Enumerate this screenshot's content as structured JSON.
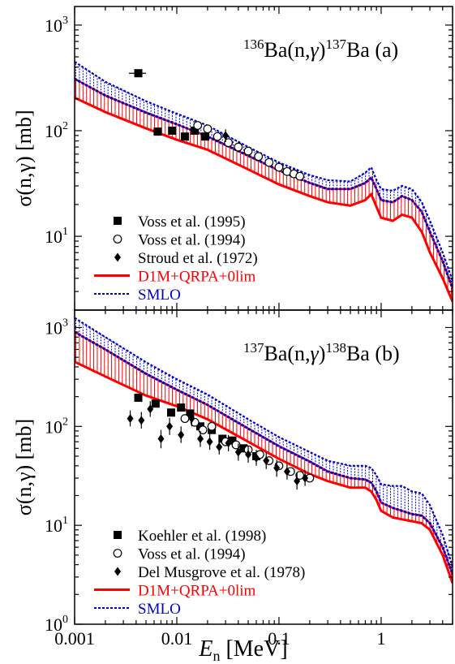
{
  "chart_data": [
    {
      "type": "line",
      "panel_label": "(a)",
      "reaction": {
        "target_mass": "136",
        "target": "Ba(n,",
        "gamma": "γ",
        "close": ")",
        "product_mass": "137",
        "product": "Ba"
      },
      "ylabel": "σ(n,γ) [mb]",
      "xlabel": "",
      "xscale": "log",
      "yscale": "log",
      "xlim": [
        0.001,
        5
      ],
      "ylim": [
        2,
        1500
      ],
      "y_ticks": [
        {
          "value": 10,
          "label": "10",
          "exp": "1"
        },
        {
          "value": 100,
          "label": "10",
          "exp": "2"
        },
        {
          "value": 1000,
          "label": "10",
          "exp": "3"
        }
      ],
      "x_ticks": [],
      "legend_position": "bottom-left",
      "series": [
        {
          "name": "D1M+QRPA+0lim",
          "kind": "band",
          "color": "#ff0000",
          "x": [
            0.001,
            0.002,
            0.005,
            0.01,
            0.02,
            0.05,
            0.1,
            0.2,
            0.3,
            0.5,
            0.7,
            0.8,
            0.9,
            1.0,
            1.3,
            1.6,
            2.0,
            2.5,
            3.0,
            4.0,
            5.0
          ],
          "lower": [
            205,
            150,
            105,
            82,
            66,
            43,
            31,
            24,
            21,
            19.5,
            22,
            25,
            19,
            15,
            14,
            16,
            15,
            11,
            7,
            4,
            2.4
          ],
          "upper": [
            310,
            215,
            148,
            115,
            88,
            58,
            42,
            32,
            28,
            28,
            32,
            36,
            28,
            22,
            21,
            24,
            22,
            17,
            11,
            5.8,
            3.2
          ]
        },
        {
          "name": "SMLO",
          "kind": "band",
          "color": "#0000cc",
          "x": [
            0.001,
            0.002,
            0.005,
            0.01,
            0.02,
            0.05,
            0.1,
            0.2,
            0.3,
            0.5,
            0.7,
            0.8,
            0.9,
            1.0,
            1.3,
            1.6,
            2.0,
            2.5,
            3.0,
            4.0,
            5.0
          ],
          "lower": [
            310,
            215,
            148,
            115,
            88,
            58,
            42,
            32,
            28,
            28,
            32,
            36,
            28,
            22,
            21,
            24,
            22,
            17,
            11,
            5.8,
            3.2
          ],
          "upper": [
            450,
            290,
            190,
            145,
            112,
            70,
            50,
            38,
            34,
            33,
            40,
            45,
            34,
            28,
            27,
            30,
            28,
            21,
            14,
            7,
            3.8
          ]
        }
      ],
      "experiments": [
        {
          "name": "Voss et al. (1995)",
          "marker": "filled-square",
          "points": [
            {
              "x": 0.0042,
              "y": 350,
              "xerr": [
                0.0034,
                0.005
              ]
            },
            {
              "x": 0.0065,
              "y": 98
            },
            {
              "x": 0.009,
              "y": 100
            },
            {
              "x": 0.012,
              "y": 88
            },
            {
              "x": 0.015,
              "y": 100
            },
            {
              "x": 0.019,
              "y": 88
            }
          ]
        },
        {
          "name": "Voss et al. (1994)",
          "marker": "open-circle",
          "points": [
            {
              "x": 0.016,
              "y": 112
            },
            {
              "x": 0.02,
              "y": 104
            },
            {
              "x": 0.025,
              "y": 88
            },
            {
              "x": 0.032,
              "y": 77
            },
            {
              "x": 0.04,
              "y": 70
            },
            {
              "x": 0.05,
              "y": 64
            },
            {
              "x": 0.063,
              "y": 57
            },
            {
              "x": 0.08,
              "y": 50
            },
            {
              "x": 0.1,
              "y": 45
            },
            {
              "x": 0.12,
              "y": 41
            },
            {
              "x": 0.14,
              "y": 39
            },
            {
              "x": 0.16,
              "y": 37
            }
          ]
        },
        {
          "name": "Stroud et al. (1972)",
          "marker": "filled-diamond",
          "points": [
            {
              "x": 0.03,
              "y": 90,
              "yerr": [
                78,
                103
              ]
            }
          ]
        }
      ]
    },
    {
      "type": "line",
      "panel_label": "(b)",
      "reaction": {
        "target_mass": "137",
        "target": "Ba(n,",
        "gamma": "γ",
        "close": ")",
        "product_mass": "138",
        "product": "Ba"
      },
      "ylabel": "σ(n,γ) [mb]",
      "xlabel": "E_n [MeV]",
      "xlabel_main": "E",
      "xlabel_sub": "n",
      "xlabel_unit": " [MeV]",
      "xscale": "log",
      "yscale": "log",
      "xlim": [
        0.001,
        5
      ],
      "ylim": [
        1,
        1500
      ],
      "y_ticks": [
        {
          "value": 1,
          "label": "10",
          "exp": "0"
        },
        {
          "value": 10,
          "label": "10",
          "exp": "1"
        },
        {
          "value": 100,
          "label": "10",
          "exp": "2"
        },
        {
          "value": 1000,
          "label": "10",
          "exp": "3"
        }
      ],
      "x_ticks": [
        {
          "value": 0.001,
          "label": "0.001"
        },
        {
          "value": 0.01,
          "label": "0.01"
        },
        {
          "value": 0.1,
          "label": "0.1"
        },
        {
          "value": 1,
          "label": "1"
        }
      ],
      "legend_position": "bottom-left",
      "series": [
        {
          "name": "D1M+QRPA+0lim",
          "kind": "band",
          "color": "#ff0000",
          "x": [
            0.001,
            0.002,
            0.005,
            0.01,
            0.02,
            0.05,
            0.1,
            0.2,
            0.3,
            0.5,
            0.7,
            0.8,
            0.9,
            1.0,
            1.3,
            1.6,
            2.0,
            2.5,
            3.0,
            4.0,
            5.0
          ],
          "lower": [
            450,
            320,
            205,
            160,
            118,
            70,
            47,
            33,
            28,
            24,
            24,
            22,
            18,
            14,
            12,
            11.5,
            11,
            10.5,
            9,
            5,
            2.6
          ],
          "upper": [
            900,
            600,
            340,
            235,
            165,
            95,
            63,
            44,
            35,
            30,
            29,
            27,
            22,
            17,
            15,
            14,
            13,
            12.5,
            10.5,
            6,
            3.2
          ]
        },
        {
          "name": "SMLO",
          "kind": "band",
          "color": "#0000cc",
          "x": [
            0.001,
            0.002,
            0.005,
            0.01,
            0.02,
            0.05,
            0.1,
            0.2,
            0.3,
            0.5,
            0.7,
            0.8,
            0.9,
            1.0,
            1.3,
            1.6,
            2.0,
            2.5,
            3.0,
            4.0,
            5.0
          ],
          "lower": [
            900,
            600,
            340,
            235,
            165,
            95,
            63,
            44,
            35,
            30,
            29,
            27,
            22,
            17,
            15,
            14,
            13,
            12.5,
            10.5,
            6,
            3.2
          ],
          "upper": [
            1250,
            800,
            445,
            300,
            210,
            118,
            78,
            55,
            45,
            40,
            40,
            38,
            32,
            26,
            25,
            25,
            22,
            21,
            16,
            8,
            3.8
          ]
        }
      ],
      "experiments": [
        {
          "name": "Koehler et al. (1998)",
          "marker": "filled-square",
          "points": [
            {
              "x": 0.0042,
              "y": 195
            },
            {
              "x": 0.0062,
              "y": 170
            },
            {
              "x": 0.0088,
              "y": 138
            },
            {
              "x": 0.011,
              "y": 155
            },
            {
              "x": 0.0135,
              "y": 135
            },
            {
              "x": 0.017,
              "y": 100
            },
            {
              "x": 0.022,
              "y": 92
            },
            {
              "x": 0.028,
              "y": 75
            },
            {
              "x": 0.035,
              "y": 72
            },
            {
              "x": 0.045,
              "y": 60
            },
            {
              "x": 0.06,
              "y": 50
            }
          ]
        },
        {
          "name": "Voss et al. (1994)",
          "marker": "open-circle",
          "points": [
            {
              "x": 0.012,
              "y": 120
            },
            {
              "x": 0.015,
              "y": 110
            },
            {
              "x": 0.018,
              "y": 92
            },
            {
              "x": 0.022,
              "y": 100
            },
            {
              "x": 0.03,
              "y": 70
            },
            {
              "x": 0.038,
              "y": 65
            },
            {
              "x": 0.05,
              "y": 58
            },
            {
              "x": 0.065,
              "y": 52
            },
            {
              "x": 0.08,
              "y": 45
            },
            {
              "x": 0.1,
              "y": 40
            },
            {
              "x": 0.13,
              "y": 35
            },
            {
              "x": 0.16,
              "y": 32
            },
            {
              "x": 0.2,
              "y": 30
            }
          ]
        },
        {
          "name": "Del Musgrove et al. (1978)",
          "marker": "filled-diamond",
          "points": [
            {
              "x": 0.0035,
              "y": 120,
              "yerr": [
                100,
                145
              ]
            },
            {
              "x": 0.0045,
              "y": 115,
              "yerr": [
                95,
                140
              ]
            },
            {
              "x": 0.0055,
              "y": 150,
              "yerr": [
                125,
                180
              ]
            },
            {
              "x": 0.007,
              "y": 75,
              "yerr": [
                60,
                92
              ]
            },
            {
              "x": 0.0085,
              "y": 100,
              "yerr": [
                82,
                122
              ]
            },
            {
              "x": 0.011,
              "y": 82,
              "yerr": [
                68,
                100
              ]
            },
            {
              "x": 0.014,
              "y": 120,
              "yerr": [
                100,
                145
              ]
            },
            {
              "x": 0.017,
              "y": 75,
              "yerr": [
                62,
                90
              ]
            },
            {
              "x": 0.021,
              "y": 70,
              "yerr": [
                58,
                85
              ]
            },
            {
              "x": 0.026,
              "y": 62,
              "yerr": [
                52,
                75
              ]
            },
            {
              "x": 0.032,
              "y": 68,
              "yerr": [
                56,
                82
              ]
            },
            {
              "x": 0.04,
              "y": 55,
              "yerr": [
                45,
                67
              ]
            },
            {
              "x": 0.05,
              "y": 52,
              "yerr": [
                43,
                63
              ]
            },
            {
              "x": 0.06,
              "y": 48,
              "yerr": [
                40,
                58
              ]
            },
            {
              "x": 0.075,
              "y": 45,
              "yerr": [
                37,
                55
              ]
            },
            {
              "x": 0.095,
              "y": 38,
              "yerr": [
                31,
                46
              ]
            },
            {
              "x": 0.12,
              "y": 35,
              "yerr": [
                29,
                42
              ]
            },
            {
              "x": 0.15,
              "y": 28,
              "yerr": [
                23,
                34
              ]
            },
            {
              "x": 0.18,
              "y": 30,
              "yerr": [
                25,
                36
              ]
            }
          ]
        }
      ]
    }
  ]
}
